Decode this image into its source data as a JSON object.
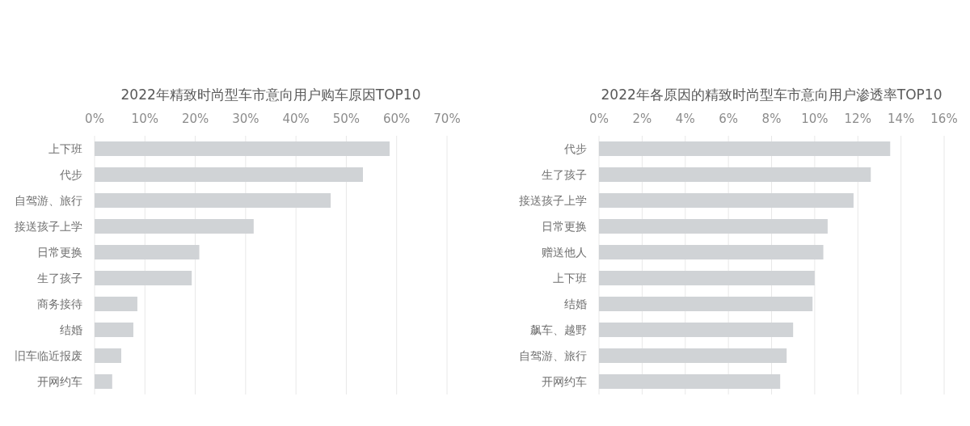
{
  "chart_data": [
    {
      "type": "bar",
      "orientation": "horizontal",
      "title": "2022年精致时尚型车市意向用户购车原因TOP10",
      "categories": [
        "上下班",
        "代步",
        "自驾游、旅行",
        "接送孩子上学",
        "日常更换",
        "生了孩子",
        "商务接待",
        "结婚",
        "旧车临近报废",
        "开网约车"
      ],
      "values": [
        58.6,
        53.3,
        46.9,
        31.6,
        20.8,
        19.3,
        8.5,
        7.7,
        5.3,
        3.5
      ],
      "color": "#d0d3d6",
      "xlim": [
        0,
        70
      ],
      "xticks": [
        {
          "value": 0,
          "label": "0%"
        },
        {
          "value": 10,
          "label": "10%"
        },
        {
          "value": 20,
          "label": "20%"
        },
        {
          "value": 30,
          "label": "30%"
        },
        {
          "value": 40,
          "label": "40%"
        },
        {
          "value": 50,
          "label": "50%"
        },
        {
          "value": 60,
          "label": "60%"
        },
        {
          "value": 70,
          "label": "70%"
        }
      ],
      "grid": "x"
    },
    {
      "type": "bar",
      "orientation": "horizontal",
      "title": "2022年各原因的精致时尚型车市意向用户渗透率TOP10",
      "categories": [
        "代步",
        "生了孩子",
        "接送孩子上学",
        "日常更换",
        "赠送他人",
        "上下班",
        "结婚",
        "飙车、越野",
        "自驾游、旅行",
        "开网约车"
      ],
      "values": [
        13.5,
        12.6,
        11.8,
        10.6,
        10.4,
        10.0,
        9.9,
        9.0,
        8.7,
        8.4
      ],
      "color": "#d0d3d6",
      "xlim": [
        0,
        16
      ],
      "xticks": [
        {
          "value": 0,
          "label": "0%"
        },
        {
          "value": 2,
          "label": "2%"
        },
        {
          "value": 4,
          "label": "4%"
        },
        {
          "value": 6,
          "label": "6%"
        },
        {
          "value": 8,
          "label": "8%"
        },
        {
          "value": 10,
          "label": "10%"
        },
        {
          "value": 12,
          "label": "12%"
        },
        {
          "value": 14,
          "label": "14%"
        },
        {
          "value": 16,
          "label": "16%"
        }
      ],
      "grid": "x"
    }
  ]
}
